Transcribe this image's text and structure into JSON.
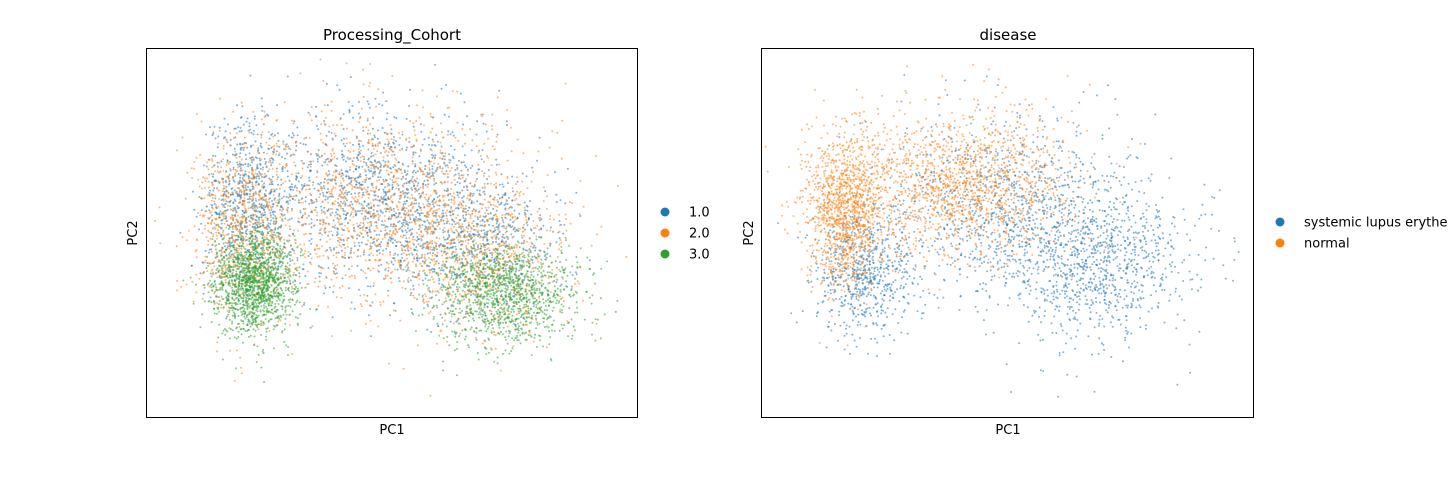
{
  "chart_data": [
    {
      "type": "scatter",
      "title": "Processing_Cohort",
      "xlabel": "PC1",
      "ylabel": "PC2",
      "xlim": [
        -10,
        10
      ],
      "ylim": [
        -8,
        8
      ],
      "grid": false,
      "x_ticks": "none",
      "y_ticks": "none",
      "legend": {
        "placement": "right-outside"
      },
      "series": [
        {
          "name": "1.0",
          "color": "#1f77b4",
          "clusters": [
            {
              "center": [
                -5.8,
                1.1
              ],
              "spread": [
                1.1,
                2.2
              ],
              "weight": 0.3
            },
            {
              "center": [
                -0.5,
                1.6
              ],
              "spread": [
                2.8,
                2.2
              ],
              "weight": 0.45
            },
            {
              "center": [
                3.5,
                -0.5
              ],
              "spread": [
                2.0,
                1.8
              ],
              "weight": 0.25
            }
          ]
        },
        {
          "name": "2.0",
          "color": "#ff7f0e",
          "clusters": [
            {
              "center": [
                -6.2,
                0.3
              ],
              "spread": [
                1.2,
                2.4
              ],
              "weight": 0.28
            },
            {
              "center": [
                -0.5,
                1.0
              ],
              "spread": [
                3.2,
                2.6
              ],
              "weight": 0.47
            },
            {
              "center": [
                3.8,
                -0.9
              ],
              "spread": [
                2.1,
                2.0
              ],
              "weight": 0.25
            }
          ]
        },
        {
          "name": "3.0",
          "color": "#2ca02c",
          "clusters": [
            {
              "center": [
                -5.6,
                -2.2
              ],
              "spread": [
                1.0,
                1.3
              ],
              "weight": 0.55
            },
            {
              "center": [
                4.6,
                -2.6
              ],
              "spread": [
                1.8,
                1.3
              ],
              "weight": 0.45
            }
          ]
        }
      ]
    },
    {
      "type": "scatter",
      "title": "disease",
      "xlabel": "PC1",
      "ylabel": "PC2",
      "xlim": [
        -10,
        10
      ],
      "ylim": [
        -8,
        8
      ],
      "grid": false,
      "x_ticks": "none",
      "y_ticks": "none",
      "legend": {
        "placement": "right-outside"
      },
      "series": [
        {
          "name": "systemic lupus erythe",
          "color": "#1f77b4",
          "clusters": [
            {
              "center": [
                -5.8,
                -1.8
              ],
              "spread": [
                1.2,
                1.6
              ],
              "weight": 0.25
            },
            {
              "center": [
                0.0,
                1.0
              ],
              "spread": [
                3.0,
                2.4
              ],
              "weight": 0.4
            },
            {
              "center": [
                3.8,
                -1.2
              ],
              "spread": [
                2.2,
                2.0
              ],
              "weight": 0.35
            }
          ]
        },
        {
          "name": "normal",
          "color": "#ff7f0e",
          "clusters": [
            {
              "center": [
                -6.6,
                1.0
              ],
              "spread": [
                1.0,
                2.0
              ],
              "weight": 0.45
            },
            {
              "center": [
                -2.0,
                2.2
              ],
              "spread": [
                2.8,
                1.8
              ],
              "weight": 0.55
            }
          ]
        }
      ]
    }
  ]
}
